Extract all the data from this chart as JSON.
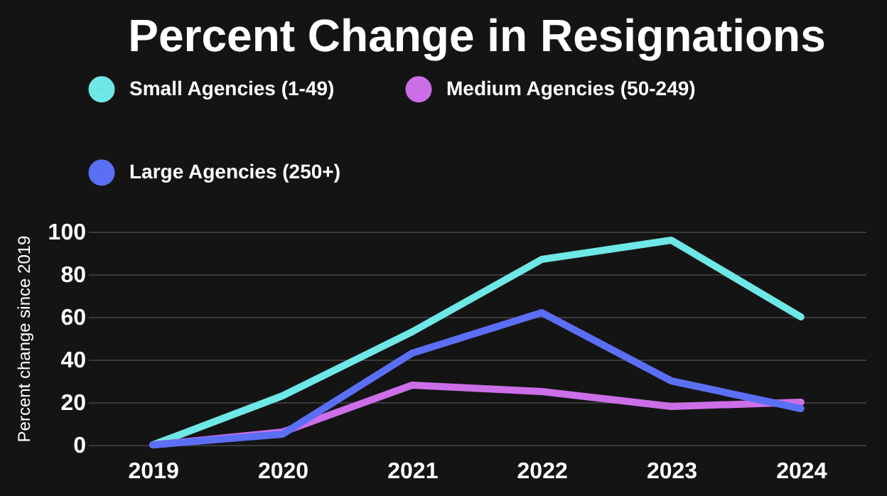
{
  "chart_data": {
    "type": "line",
    "title": "Percent Change in Resignations",
    "ylabel": "Percent change since 2019",
    "categories": [
      "2019",
      "2020",
      "2021",
      "2022",
      "2023",
      "2024"
    ],
    "series": [
      {
        "name": "Small Agencies (1-49)",
        "color": "#6ee8e6",
        "values": [
          0,
          23,
          53,
          87,
          96,
          60
        ]
      },
      {
        "name": "Medium Agencies (50-249)",
        "color": "#cc6ee8",
        "values": [
          0,
          6,
          28,
          25,
          18,
          20
        ]
      },
      {
        "name": "Large Agencies (250+)",
        "color": "#5b6ff5",
        "values": [
          0,
          5,
          43,
          62,
          30,
          17
        ]
      }
    ],
    "ylim": [
      0,
      100
    ],
    "yticks": [
      0,
      20,
      40,
      60,
      80,
      100
    ],
    "grid": "y",
    "legend": "top",
    "marker": "none",
    "line_style": "solid"
  }
}
